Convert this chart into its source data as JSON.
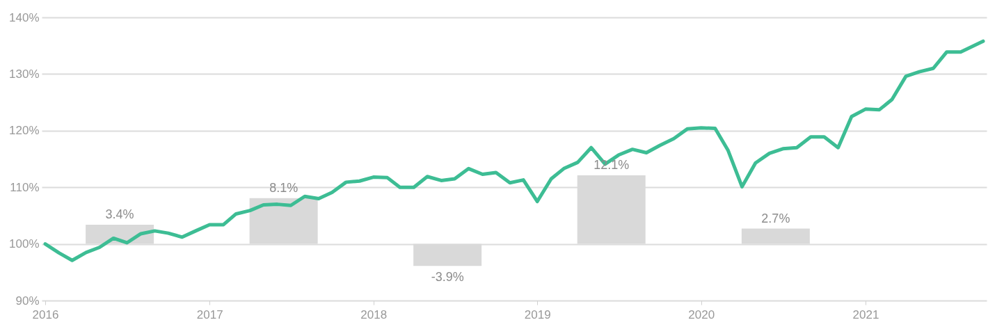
{
  "chart_data": {
    "type": "line",
    "xlim": [
      "2016-01",
      "2021-09-20"
    ],
    "xticks": [
      "2016",
      "2017",
      "2018",
      "2019",
      "2020",
      "2021"
    ],
    "ylim": [
      90,
      140
    ],
    "yticks": [
      {
        "value": 90,
        "label": "90%"
      },
      {
        "value": 100,
        "label": "100%"
      },
      {
        "value": 110,
        "label": "110%"
      },
      {
        "value": 120,
        "label": "120%"
      },
      {
        "value": 130,
        "label": "130%"
      },
      {
        "value": 140,
        "label": "140%"
      }
    ],
    "grid": "y",
    "series": [
      {
        "type": "bar",
        "color": "#d9d9d9",
        "x": [
          "2016-06-15",
          "2017-06-15",
          "2018-06-15",
          "2019-06-15",
          "2020-06-15"
        ],
        "base": [
          100,
          100,
          100,
          100,
          100
        ],
        "values": [
          3.4,
          8.1,
          -3.9,
          12.1,
          2.7
        ],
        "value_labels": [
          "3.4%",
          "8.1%",
          "-3.9%",
          "12.1%",
          "2.7%"
        ]
      },
      {
        "color": "#3dbd94",
        "x": [
          "2016-01",
          "2016-02",
          "2016-03",
          "2016-04",
          "2016-05",
          "2016-06",
          "2016-07",
          "2016-08",
          "2016-09",
          "2016-10",
          "2016-11",
          "2016-12",
          "2017-01",
          "2017-02",
          "2017-03",
          "2017-04",
          "2017-05",
          "2017-06",
          "2017-07",
          "2017-08",
          "2017-09",
          "2017-10",
          "2017-11",
          "2017-12",
          "2018-01",
          "2018-02",
          "2018-03",
          "2018-04",
          "2018-05",
          "2018-06",
          "2018-07",
          "2018-08",
          "2018-09",
          "2018-10",
          "2018-11",
          "2018-12",
          "2019-01",
          "2019-02",
          "2019-03",
          "2019-04",
          "2019-05",
          "2019-06",
          "2019-07",
          "2019-08",
          "2019-09",
          "2019-10",
          "2019-11",
          "2019-12",
          "2020-01",
          "2020-02",
          "2020-03",
          "2020-04",
          "2020-05",
          "2020-06",
          "2020-07",
          "2020-08",
          "2020-09",
          "2020-10",
          "2020-11",
          "2020-12",
          "2021-01",
          "2021-02",
          "2021-03",
          "2021-04",
          "2021-05",
          "2021-06",
          "2021-07",
          "2021-08",
          "2021-09-20"
        ],
        "values": [
          100.0,
          98.4,
          97.1,
          98.5,
          99.4,
          101.0,
          100.2,
          101.8,
          102.3,
          101.9,
          101.2,
          102.3,
          103.4,
          103.4,
          105.3,
          105.9,
          106.9,
          107.0,
          106.8,
          108.4,
          108.0,
          109.1,
          110.9,
          111.1,
          111.8,
          111.7,
          110.0,
          110.0,
          111.9,
          111.2,
          111.5,
          113.3,
          112.3,
          112.6,
          110.8,
          111.3,
          107.5,
          111.5,
          113.3,
          114.4,
          117.0,
          114.1,
          115.7,
          116.7,
          116.1,
          117.4,
          118.6,
          120.3,
          120.5,
          120.4,
          116.5,
          110.1,
          114.3,
          116.0,
          116.8,
          117.0,
          118.9,
          118.9,
          117.0,
          122.5,
          123.8,
          123.7,
          125.5,
          129.6,
          130.4,
          131.0,
          133.9,
          133.9,
          135.8
        ]
      }
    ]
  }
}
